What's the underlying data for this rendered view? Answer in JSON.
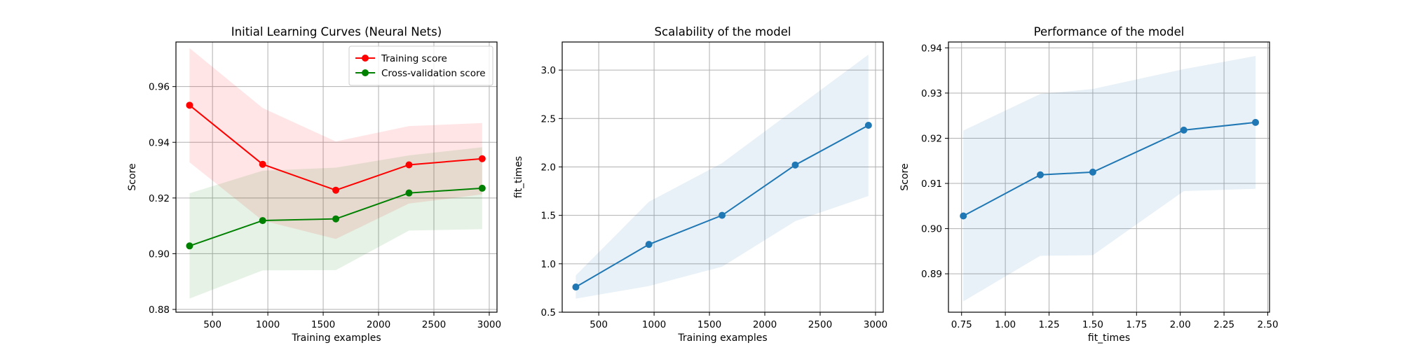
{
  "chart_data": [
    {
      "type": "line",
      "title": "Initial Learning Curves (Neural Nets)",
      "xlabel": "Training examples",
      "ylabel": "Score",
      "xlim": [
        170,
        3070
      ],
      "ylim": [
        0.879,
        0.976
      ],
      "xticks": [
        500,
        1000,
        1500,
        2000,
        2500,
        3000
      ],
      "yticks": [
        0.88,
        0.9,
        0.92,
        0.94,
        0.96
      ],
      "ytick_decimals": 2,
      "grid": true,
      "legend": "top-right",
      "x": [
        293,
        953,
        1614,
        2275,
        2936
      ],
      "series": [
        {
          "name": "Training score",
          "color": "#ff0000",
          "values": [
            0.9533,
            0.9321,
            0.9228,
            0.9319,
            0.9341
          ],
          "lower": [
            0.9328,
            0.9119,
            0.9053,
            0.918,
            0.9213
          ],
          "upper": [
            0.9738,
            0.9523,
            0.9403,
            0.9458,
            0.9469
          ]
        },
        {
          "name": "Cross-validation score",
          "color": "#008000",
          "values": [
            0.9028,
            0.9119,
            0.9125,
            0.9218,
            0.9235
          ],
          "lower": [
            0.8839,
            0.894,
            0.8941,
            0.9083,
            0.9088
          ],
          "upper": [
            0.9217,
            0.9298,
            0.9309,
            0.9353,
            0.9382
          ]
        }
      ]
    },
    {
      "type": "line",
      "title": "Scalability of the model",
      "xlabel": "Training examples",
      "ylabel": "fit_times",
      "xlim": [
        170,
        3070
      ],
      "ylim": [
        0.5,
        3.29
      ],
      "xticks": [
        500,
        1000,
        1500,
        2000,
        2500,
        3000
      ],
      "yticks": [
        0.5,
        1.0,
        1.5,
        2.0,
        2.5,
        3.0
      ],
      "ytick_decimals": 1,
      "grid": true,
      "x": [
        293,
        953,
        1614,
        2275,
        2936
      ],
      "series": [
        {
          "color": "#1f77b4",
          "values": [
            0.76,
            1.2,
            1.5,
            2.02,
            2.43
          ],
          "lower": [
            0.64,
            0.77,
            0.97,
            1.44,
            1.7
          ],
          "upper": [
            0.88,
            1.64,
            2.04,
            2.6,
            3.16
          ]
        }
      ]
    },
    {
      "type": "line",
      "title": "Performance of the model",
      "xlabel": "fit_times",
      "ylabel": "Score",
      "xlim": [
        0.675,
        2.51
      ],
      "ylim": [
        0.8815,
        0.9413
      ],
      "xticks": [
        0.75,
        1.0,
        1.25,
        1.5,
        1.75,
        2.0,
        2.25,
        2.5
      ],
      "xtick_decimals": 2,
      "yticks": [
        0.89,
        0.9,
        0.91,
        0.92,
        0.93,
        0.94
      ],
      "ytick_decimals": 2,
      "grid": true,
      "x": [
        0.76,
        1.2,
        1.5,
        2.02,
        2.43
      ],
      "series": [
        {
          "color": "#1f77b4",
          "values": [
            0.9028,
            0.9119,
            0.9125,
            0.9218,
            0.9235
          ],
          "lower": [
            0.8839,
            0.894,
            0.8941,
            0.9083,
            0.9088
          ],
          "upper": [
            0.9217,
            0.9298,
            0.9309,
            0.9353,
            0.9382
          ]
        }
      ]
    }
  ]
}
